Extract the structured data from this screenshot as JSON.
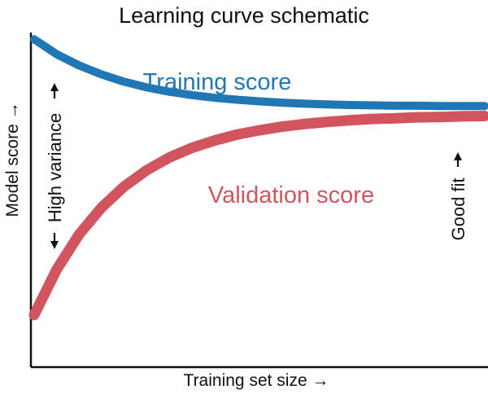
{
  "chart_data": {
    "type": "line",
    "title": "Learning curve schematic",
    "xlabel": "Training set size →",
    "ylabel": "Model score →",
    "xlim": [
      0,
      1
    ],
    "ylim": [
      0,
      1
    ],
    "grid": false,
    "legend": "none",
    "series": [
      {
        "name": "Training score",
        "color": "#1f77b4",
        "x": [
          0,
          0.05,
          0.1,
          0.15,
          0.2,
          0.25,
          0.3,
          0.35,
          0.4,
          0.45,
          0.5,
          0.55,
          0.6,
          0.65,
          0.7,
          0.75,
          0.8,
          0.85,
          0.9,
          0.95,
          1
        ],
        "y": [
          0.97,
          0.925,
          0.891,
          0.864,
          0.842,
          0.825,
          0.812,
          0.802,
          0.794,
          0.788,
          0.783,
          0.779,
          0.776,
          0.774,
          0.772,
          0.771,
          0.77,
          0.77,
          0.769,
          0.769,
          0.769
        ]
      },
      {
        "name": "Validation score",
        "color": "#d1545f",
        "x": [
          0,
          0.05,
          0.1,
          0.15,
          0.2,
          0.25,
          0.3,
          0.35,
          0.4,
          0.45,
          0.5,
          0.55,
          0.6,
          0.65,
          0.7,
          0.75,
          0.8,
          0.85,
          0.9,
          0.95,
          1
        ],
        "y": [
          0.14,
          0.277,
          0.383,
          0.464,
          0.527,
          0.576,
          0.614,
          0.643,
          0.665,
          0.683,
          0.696,
          0.707,
          0.715,
          0.721,
          0.726,
          0.73,
          0.732,
          0.735,
          0.736,
          0.738,
          0.739
        ]
      }
    ],
    "annotations": [
      {
        "text": "High variance",
        "x": 0.05
      },
      {
        "text": "Good fit",
        "x": 0.95
      }
    ]
  }
}
